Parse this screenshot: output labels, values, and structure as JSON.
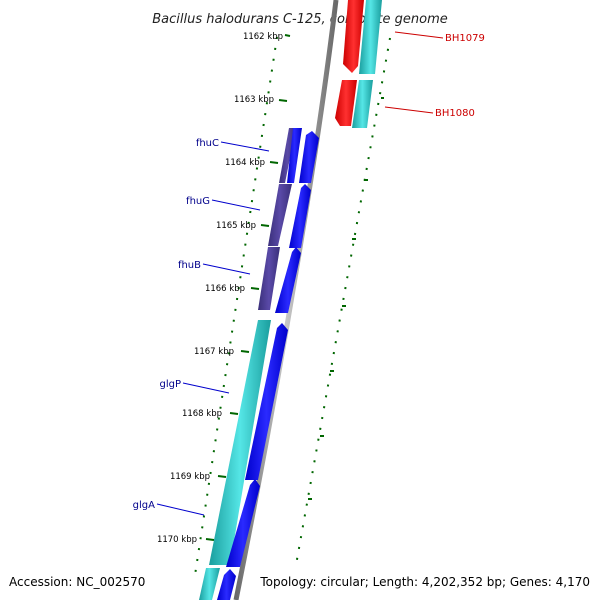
{
  "title": "Bacillus halodurans C-125, complete genome",
  "footer": {
    "accession": "Accession: NC_002570",
    "summary": "Topology: circular; Length: 4,202,352 bp; Genes: 4,170"
  },
  "ticks": [
    {
      "label": "1162 kbp"
    },
    {
      "label": "1163 kbp"
    },
    {
      "label": "1164 kbp"
    },
    {
      "label": "1165 kbp"
    },
    {
      "label": "1166 kbp"
    },
    {
      "label": "1167 kbp"
    },
    {
      "label": "1168 kbp"
    },
    {
      "label": "1169 kbp"
    },
    {
      "label": "1170 kbp"
    }
  ],
  "genes_left": [
    {
      "label": "fhuC"
    },
    {
      "label": "fhuG"
    },
    {
      "label": "fhuB"
    },
    {
      "label": "glgP"
    },
    {
      "label": "glgA"
    }
  ],
  "genes_right": [
    {
      "label": "BH1079"
    },
    {
      "label": "BH1080"
    }
  ],
  "colors": {
    "backbone": "#808080",
    "cds_forward": "#0000ff",
    "cds_reverse_red": "#ff0000",
    "cog_cyan": "#33cccc",
    "cog_purple": "#4b3d8f",
    "tick_green": "#006600",
    "label_blue": "#00008b",
    "label_red": "#cc0000"
  }
}
